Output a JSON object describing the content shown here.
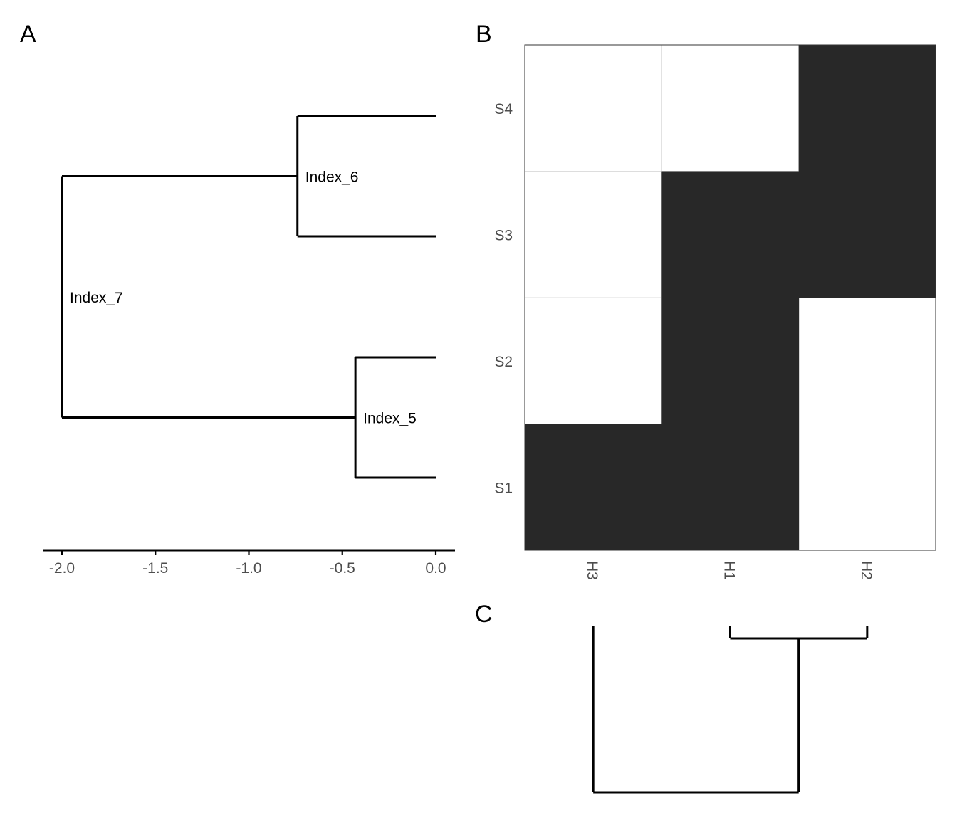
{
  "panels": {
    "a_label": "A",
    "b_label": "B",
    "c_label": "C"
  },
  "chart_data": [
    {
      "type": "dendrogram",
      "panel": "A",
      "orientation": "horizontal",
      "xlim": [
        -2.1,
        0.1
      ],
      "x_ticks": [
        -2.0,
        -1.5,
        -1.0,
        -0.5,
        0.0
      ],
      "x_tick_labels": [
        "-2.0",
        "-1.5",
        "-1.0",
        "-0.5",
        "0.0"
      ],
      "leaves": 4,
      "nodes": [
        {
          "label": "Index_6",
          "height": -0.74,
          "children": [
            "leaf_4",
            "leaf_3"
          ]
        },
        {
          "label": "Index_5",
          "height": -0.43,
          "children": [
            "leaf_2",
            "leaf_1"
          ]
        },
        {
          "label": "Index_7",
          "height": -2.0,
          "children": [
            "Index_6",
            "Index_5"
          ]
        }
      ]
    },
    {
      "type": "heatmap",
      "panel": "B",
      "rows": [
        "S4",
        "S3",
        "S2",
        "S1"
      ],
      "columns": [
        "H3",
        "H1",
        "H2"
      ],
      "values": [
        [
          0,
          0,
          1
        ],
        [
          0,
          1,
          1
        ],
        [
          0,
          1,
          0
        ],
        [
          1,
          1,
          0
        ]
      ],
      "colors": {
        "1": "#282828",
        "0": "#ffffff"
      },
      "grid": true
    },
    {
      "type": "dendrogram",
      "panel": "C",
      "orientation": "vertical",
      "leaves": [
        "H3",
        "H1",
        "H2"
      ],
      "nodes": [
        {
          "children": [
            "H1",
            "H2"
          ],
          "height": 0.08
        },
        {
          "children": [
            "H3",
            "H1+H2"
          ],
          "height": 1.0
        }
      ]
    }
  ]
}
